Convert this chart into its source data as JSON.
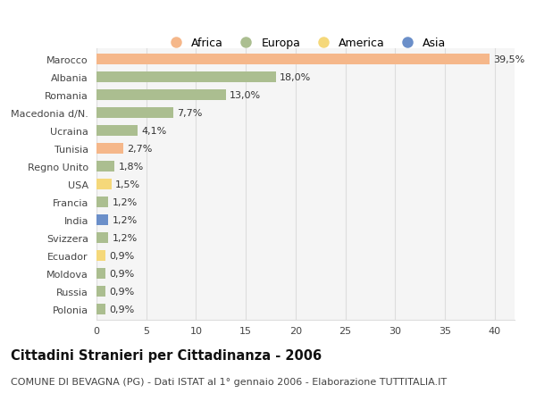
{
  "countries": [
    "Marocco",
    "Albania",
    "Romania",
    "Macedonia d/N.",
    "Ucraina",
    "Tunisia",
    "Regno Unito",
    "USA",
    "Francia",
    "India",
    "Svizzera",
    "Ecuador",
    "Moldova",
    "Russia",
    "Polonia"
  ],
  "values": [
    39.5,
    18.0,
    13.0,
    7.7,
    4.1,
    2.7,
    1.8,
    1.5,
    1.2,
    1.2,
    1.2,
    0.9,
    0.9,
    0.9,
    0.9
  ],
  "labels": [
    "39,5%",
    "18,0%",
    "13,0%",
    "7,7%",
    "4,1%",
    "2,7%",
    "1,8%",
    "1,5%",
    "1,2%",
    "1,2%",
    "1,2%",
    "0,9%",
    "0,9%",
    "0,9%",
    "0,9%"
  ],
  "continents": [
    "Africa",
    "Europa",
    "Europa",
    "Europa",
    "Europa",
    "Africa",
    "Europa",
    "America",
    "Europa",
    "Asia",
    "Europa",
    "America",
    "Europa",
    "Europa",
    "Europa"
  ],
  "colors": {
    "Africa": "#F5B78A",
    "Europa": "#ABBE90",
    "America": "#F5D87A",
    "Asia": "#6B8FC9"
  },
  "legend_order": [
    "Africa",
    "Europa",
    "America",
    "Asia"
  ],
  "title": "Cittadini Stranieri per Cittadinanza - 2006",
  "subtitle": "COMUNE DI BEVAGNA (PG) - Dati ISTAT al 1° gennaio 2006 - Elaborazione TUTTITALIA.IT",
  "xlim": [
    0,
    42
  ],
  "xticks": [
    0,
    5,
    10,
    15,
    20,
    25,
    30,
    35,
    40
  ],
  "background_color": "#FFFFFF",
  "plot_bg_color": "#F5F5F5",
  "grid_color": "#DDDDDD",
  "bar_height": 0.62,
  "title_fontsize": 10.5,
  "subtitle_fontsize": 8,
  "tick_fontsize": 8,
  "label_fontsize": 8
}
